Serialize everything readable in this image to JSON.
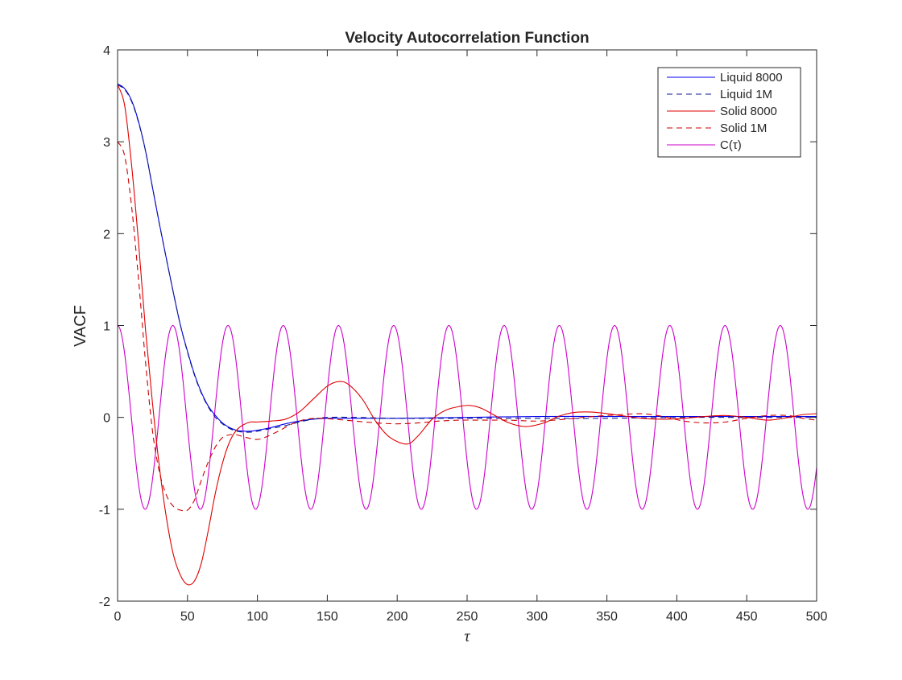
{
  "chart_data": {
    "type": "line",
    "title": "Velocity Autocorrelation Function",
    "xlabel": "τ",
    "ylabel": "VACF",
    "xlim": [
      0,
      500
    ],
    "ylim": [
      -2,
      4
    ],
    "x_ticks": [
      "0",
      "50",
      "100",
      "150",
      "200",
      "250",
      "300",
      "350",
      "400",
      "450",
      "500"
    ],
    "y_ticks": [
      "-2",
      "-1",
      "0",
      "1",
      "2",
      "3",
      "4"
    ],
    "grid": false,
    "legend_position": "top-right",
    "series": [
      {
        "name": "Liquid 8000",
        "color": "#0000ee",
        "dash": "solid",
        "points": [
          [
            0,
            3.63
          ],
          [
            5,
            3.58
          ],
          [
            10,
            3.45
          ],
          [
            15,
            3.22
          ],
          [
            20,
            2.9
          ],
          [
            25,
            2.5
          ],
          [
            30,
            2.1
          ],
          [
            35,
            1.72
          ],
          [
            40,
            1.35
          ],
          [
            45,
            1.0
          ],
          [
            50,
            0.72
          ],
          [
            55,
            0.47
          ],
          [
            60,
            0.27
          ],
          [
            65,
            0.12
          ],
          [
            70,
            0.02
          ],
          [
            75,
            -0.06
          ],
          [
            80,
            -0.11
          ],
          [
            85,
            -0.14
          ],
          [
            90,
            -0.15
          ],
          [
            95,
            -0.15
          ],
          [
            100,
            -0.14
          ],
          [
            110,
            -0.11
          ],
          [
            120,
            -0.07
          ],
          [
            130,
            -0.04
          ],
          [
            140,
            -0.02
          ],
          [
            150,
            -0.01
          ],
          [
            170,
            -0.01
          ],
          [
            200,
            -0.01
          ],
          [
            250,
            0.0
          ],
          [
            300,
            0.01
          ],
          [
            350,
            0.01
          ],
          [
            400,
            0.01
          ],
          [
            450,
            0.01
          ],
          [
            500,
            0.01
          ]
        ]
      },
      {
        "name": "Liquid 1M",
        "color": "#0d1a8a",
        "dash": "dashed",
        "points": [
          [
            0,
            3.62
          ],
          [
            5,
            3.57
          ],
          [
            10,
            3.44
          ],
          [
            15,
            3.21
          ],
          [
            20,
            2.9
          ],
          [
            25,
            2.5
          ],
          [
            30,
            2.1
          ],
          [
            35,
            1.72
          ],
          [
            40,
            1.35
          ],
          [
            45,
            1.0
          ],
          [
            50,
            0.71
          ],
          [
            55,
            0.46
          ],
          [
            60,
            0.26
          ],
          [
            65,
            0.11
          ],
          [
            70,
            0.0
          ],
          [
            75,
            -0.07
          ],
          [
            80,
            -0.12
          ],
          [
            85,
            -0.15
          ],
          [
            90,
            -0.16
          ],
          [
            95,
            -0.16
          ],
          [
            100,
            -0.15
          ],
          [
            110,
            -0.12
          ],
          [
            120,
            -0.09
          ],
          [
            130,
            -0.05
          ],
          [
            140,
            -0.02
          ],
          [
            150,
            0.0
          ],
          [
            170,
            0.0
          ],
          [
            200,
            -0.01
          ],
          [
            250,
            -0.01
          ],
          [
            300,
            -0.01
          ],
          [
            350,
            -0.01
          ],
          [
            400,
            0.0
          ],
          [
            450,
            0.0
          ],
          [
            500,
            0.0
          ]
        ]
      },
      {
        "name": "Solid 8000",
        "color": "#e00000",
        "dash": "solid",
        "points": [
          [
            0,
            3.62
          ],
          [
            5,
            3.4
          ],
          [
            10,
            2.75
          ],
          [
            15,
            1.9
          ],
          [
            20,
            0.95
          ],
          [
            25,
            0.15
          ],
          [
            30,
            -0.55
          ],
          [
            35,
            -1.1
          ],
          [
            40,
            -1.5
          ],
          [
            45,
            -1.72
          ],
          [
            50,
            -1.82
          ],
          [
            55,
            -1.78
          ],
          [
            60,
            -1.58
          ],
          [
            65,
            -1.22
          ],
          [
            70,
            -0.82
          ],
          [
            75,
            -0.5
          ],
          [
            80,
            -0.27
          ],
          [
            85,
            -0.14
          ],
          [
            90,
            -0.08
          ],
          [
            95,
            -0.05
          ],
          [
            100,
            -0.05
          ],
          [
            110,
            -0.04
          ],
          [
            120,
            -0.02
          ],
          [
            130,
            0.06
          ],
          [
            140,
            0.2
          ],
          [
            150,
            0.34
          ],
          [
            158,
            0.39
          ],
          [
            165,
            0.36
          ],
          [
            175,
            0.2
          ],
          [
            185,
            -0.05
          ],
          [
            195,
            -0.22
          ],
          [
            207,
            -0.29
          ],
          [
            215,
            -0.2
          ],
          [
            225,
            -0.02
          ],
          [
            235,
            0.08
          ],
          [
            245,
            0.12
          ],
          [
            252,
            0.13
          ],
          [
            260,
            0.1
          ],
          [
            270,
            0.02
          ],
          [
            280,
            -0.06
          ],
          [
            292,
            -0.1
          ],
          [
            305,
            -0.06
          ],
          [
            315,
            0.01
          ],
          [
            325,
            0.05
          ],
          [
            335,
            0.06
          ],
          [
            345,
            0.05
          ],
          [
            360,
            0.02
          ],
          [
            375,
            -0.01
          ],
          [
            390,
            -0.02
          ],
          [
            405,
            -0.01
          ],
          [
            420,
            0.01
          ],
          [
            435,
            0.02
          ],
          [
            450,
            0.0
          ],
          [
            465,
            -0.03
          ],
          [
            480,
            0.0
          ],
          [
            490,
            0.03
          ],
          [
            500,
            0.04
          ]
        ]
      },
      {
        "name": "Solid 1M",
        "color": "#cc0000",
        "dash": "dashed",
        "points": [
          [
            0,
            3.0
          ],
          [
            5,
            2.85
          ],
          [
            10,
            2.3
          ],
          [
            15,
            1.5
          ],
          [
            20,
            0.6
          ],
          [
            25,
            -0.15
          ],
          [
            30,
            -0.6
          ],
          [
            35,
            -0.85
          ],
          [
            40,
            -0.97
          ],
          [
            45,
            -1.01
          ],
          [
            50,
            -1.01
          ],
          [
            55,
            -0.9
          ],
          [
            60,
            -0.68
          ],
          [
            65,
            -0.48
          ],
          [
            70,
            -0.32
          ],
          [
            75,
            -0.22
          ],
          [
            80,
            -0.19
          ],
          [
            85,
            -0.19
          ],
          [
            90,
            -0.21
          ],
          [
            95,
            -0.23
          ],
          [
            100,
            -0.24
          ],
          [
            105,
            -0.22
          ],
          [
            115,
            -0.15
          ],
          [
            125,
            -0.07
          ],
          [
            135,
            -0.02
          ],
          [
            145,
            -0.01
          ],
          [
            155,
            -0.02
          ],
          [
            170,
            -0.04
          ],
          [
            185,
            -0.06
          ],
          [
            200,
            -0.07
          ],
          [
            215,
            -0.06
          ],
          [
            230,
            -0.04
          ],
          [
            245,
            -0.03
          ],
          [
            260,
            -0.03
          ],
          [
            280,
            -0.03
          ],
          [
            300,
            -0.04
          ],
          [
            320,
            -0.02
          ],
          [
            340,
            0.01
          ],
          [
            360,
            0.03
          ],
          [
            375,
            0.04
          ],
          [
            390,
            0.01
          ],
          [
            405,
            -0.04
          ],
          [
            420,
            -0.06
          ],
          [
            435,
            -0.05
          ],
          [
            450,
            -0.01
          ],
          [
            465,
            0.02
          ],
          [
            480,
            0.02
          ],
          [
            490,
            -0.01
          ],
          [
            500,
            -0.03
          ]
        ]
      },
      {
        "name": "C(τ)",
        "color": "#cc00cc",
        "dash": "solid",
        "function": "cos(2*pi*tau/39.5)"
      }
    ]
  }
}
